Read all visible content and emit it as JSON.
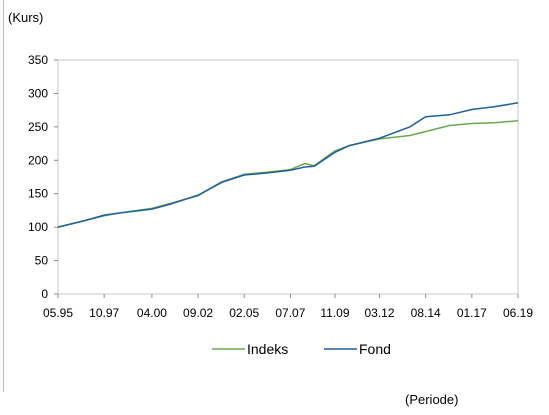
{
  "chart_data": {
    "type": "line",
    "ylabel": "(Kurs)",
    "xlabel": "(Periode)",
    "ylim": [
      0,
      350
    ],
    "yticks": [
      0,
      50,
      100,
      150,
      200,
      250,
      300,
      350
    ],
    "xlim": [
      "05.95",
      "06.19"
    ],
    "xticks": [
      "05.95",
      "10.97",
      "04.00",
      "09.02",
      "02.05",
      "07.07",
      "11.09",
      "03.12",
      "08.14",
      "01.17",
      "06.19"
    ],
    "grid": false,
    "legend_position": "bottom",
    "series": [
      {
        "name": "Indeks",
        "color": "#6aa84f",
        "x": [
          "05.95",
          "10.96",
          "10.97",
          "07.98",
          "04.00",
          "03.01",
          "09.02",
          "12.03",
          "02.05",
          "04.06",
          "07.07",
          "04.08",
          "10.08",
          "11.09",
          "08.10",
          "03.12",
          "10.13",
          "08.14",
          "11.15",
          "01.17",
          "03.18",
          "06.19"
        ],
        "values": [
          100,
          110,
          117,
          121,
          128,
          135,
          147,
          168,
          179,
          182,
          186,
          195,
          192,
          214,
          222,
          232,
          237,
          243,
          252,
          255,
          256,
          259
        ]
      },
      {
        "name": "Fond",
        "color": "#1f5f9e",
        "x": [
          "05.95",
          "10.96",
          "10.97",
          "07.98",
          "04.00",
          "03.01",
          "09.02",
          "12.03",
          "02.05",
          "04.06",
          "07.07",
          "04.08",
          "10.08",
          "11.09",
          "08.10",
          "03.12",
          "10.13",
          "08.14",
          "11.15",
          "01.17",
          "03.18",
          "06.19"
        ],
        "values": [
          100,
          110,
          118,
          121,
          127,
          134,
          148,
          167,
          178,
          181,
          185,
          190,
          191,
          212,
          222,
          233,
          250,
          265,
          268,
          276,
          280,
          286
        ]
      }
    ]
  }
}
